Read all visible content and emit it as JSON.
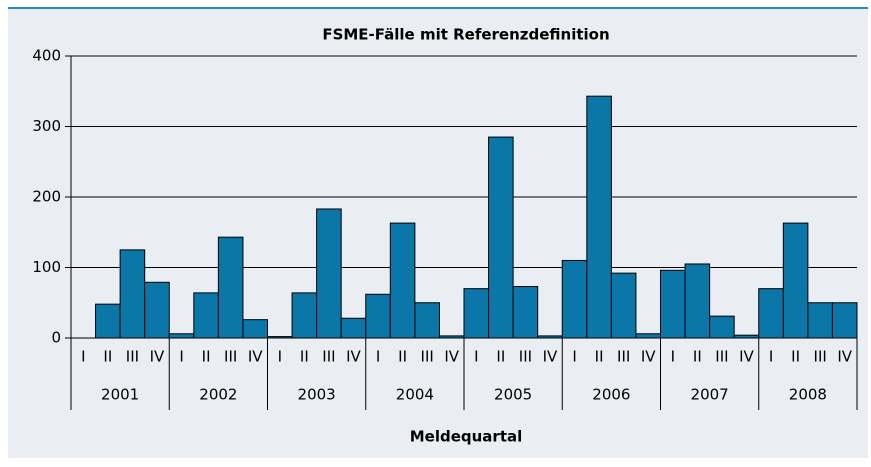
{
  "chart_data": {
    "type": "bar",
    "title": "FSME-Fälle mit Referenzdefinition",
    "x_label": "Meldequartal",
    "categories": [
      "I",
      "II",
      "III",
      "IV",
      "I",
      "II",
      "III",
      "IV",
      "I",
      "II",
      "III",
      "IV",
      "I",
      "II",
      "III",
      "IV",
      "I",
      "II",
      "III",
      "IV",
      "I",
      "II",
      "III",
      "IV",
      "I",
      "II",
      "III",
      "IV",
      "I",
      "II",
      "III",
      "IV"
    ],
    "groups": [
      "2001",
      "2002",
      "2003",
      "2004",
      "2005",
      "2006",
      "2007",
      "2008"
    ],
    "values": [
      0,
      48,
      125,
      79,
      6,
      64,
      143,
      26,
      2,
      64,
      183,
      28,
      62,
      163,
      50,
      3,
      70,
      285,
      73,
      3,
      110,
      343,
      92,
      6,
      96,
      105,
      31,
      4,
      70,
      163,
      50,
      50
    ],
    "color": "#0b77a8",
    "ylim": [
      0,
      400
    ],
    "yticks": [
      0,
      100,
      200,
      300,
      400
    ],
    "grid": true
  }
}
